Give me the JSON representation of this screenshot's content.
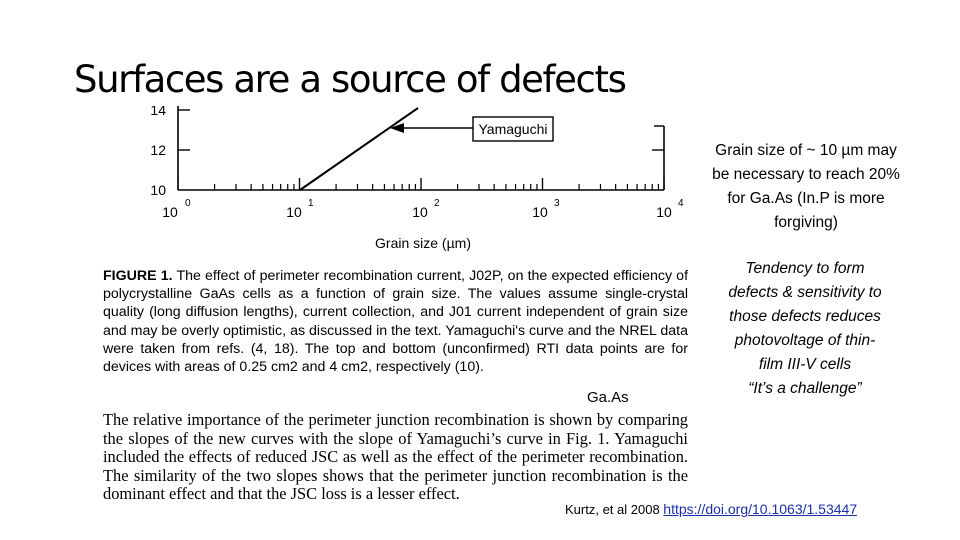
{
  "slide": {
    "title": "Surfaces are a source of defects",
    "note_grain": "Grain size of ~ 10 µm may be necessary to reach 20% for Ga.As (In.P is more forgiving)",
    "note_tendency_lines": [
      "Tendency to form",
      "defects & sensitivity to",
      "those defects reduces",
      "photovoltage of thin-",
      "film III-V cells",
      "“It’s a challenge”"
    ],
    "gaas_label": "Ga.As",
    "citation_text": "Kurtz, et al 2008",
    "citation_link": "https://doi.org/10.1063/1.53447"
  },
  "figure": {
    "y_tick_labels": [
      "14",
      "12",
      "10"
    ],
    "x_tick_labels": [
      "10",
      "10",
      "10",
      "10",
      "10"
    ],
    "x_tick_exponents": [
      "0",
      "1",
      "2",
      "3",
      "4"
    ],
    "xlabel": "Grain size (µm)",
    "annotation": "Yamaguchi",
    "caption_lead": "FIGURE 1.",
    "caption_text": "The effect of perimeter recombination current, J02P, on the expected efficiency of polycrystalline GaAs cells as a function of grain size. The values assume single-crystal quality (long diffusion lengths), current collection, and J01 current independent of grain size and may be overly optimistic, as discussed in the text. Yamaguchi's curve and the NREL data were taken from refs. (4, 18). The top and bottom (unconfirmed) RTI data points are for devices with areas of 0.25 cm2 and 4 cm2, respectively (10).",
    "body_text": "The relative importance of the perimeter junction recombination is shown by comparing the slopes of the new curves with the slope of Yamaguchi’s curve in Fig. 1. Yamaguchi included the effects of reduced JSC as well as the effect of the perimeter recombination. The similarity of the two slopes shows that the perimeter junction recombination is the dominant effect and that the JSC loss is a lesser effect."
  }
}
